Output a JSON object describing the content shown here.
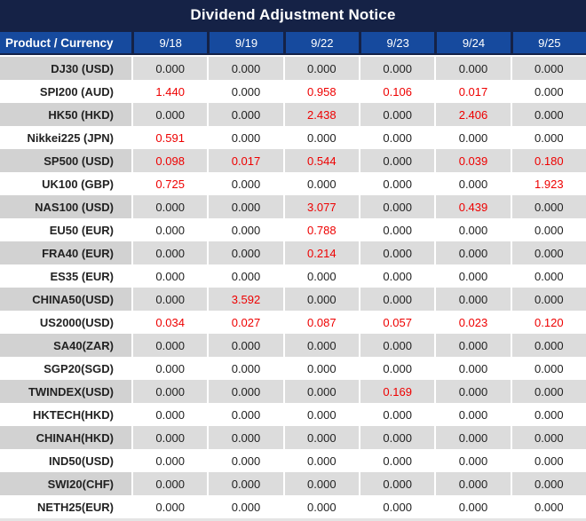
{
  "title": "Dividend Adjustment Notice",
  "table": {
    "product_header": "Product / Currency",
    "date_headers": [
      "9/18",
      "9/19",
      "9/22",
      "9/23",
      "9/24",
      "9/25"
    ],
    "rows": [
      {
        "product": "DJ30 (USD)",
        "values": [
          "0.000",
          "0.000",
          "0.000",
          "0.000",
          "0.000",
          "0.000"
        ]
      },
      {
        "product": "SPI200 (AUD)",
        "values": [
          "1.440",
          "0.000",
          "0.958",
          "0.106",
          "0.017",
          "0.000"
        ]
      },
      {
        "product": "HK50 (HKD)",
        "values": [
          "0.000",
          "0.000",
          "2.438",
          "0.000",
          "2.406",
          "0.000"
        ]
      },
      {
        "product": "Nikkei225 (JPN)",
        "values": [
          "0.591",
          "0.000",
          "0.000",
          "0.000",
          "0.000",
          "0.000"
        ]
      },
      {
        "product": "SP500 (USD)",
        "values": [
          "0.098",
          "0.017",
          "0.544",
          "0.000",
          "0.039",
          "0.180"
        ]
      },
      {
        "product": "UK100 (GBP)",
        "values": [
          "0.725",
          "0.000",
          "0.000",
          "0.000",
          "0.000",
          "1.923"
        ]
      },
      {
        "product": "NAS100 (USD)",
        "values": [
          "0.000",
          "0.000",
          "3.077",
          "0.000",
          "0.439",
          "0.000"
        ]
      },
      {
        "product": "EU50 (EUR)",
        "values": [
          "0.000",
          "0.000",
          "0.788",
          "0.000",
          "0.000",
          "0.000"
        ]
      },
      {
        "product": "FRA40 (EUR)",
        "values": [
          "0.000",
          "0.000",
          "0.214",
          "0.000",
          "0.000",
          "0.000"
        ]
      },
      {
        "product": "ES35 (EUR)",
        "values": [
          "0.000",
          "0.000",
          "0.000",
          "0.000",
          "0.000",
          "0.000"
        ]
      },
      {
        "product": "CHINA50(USD)",
        "values": [
          "0.000",
          "3.592",
          "0.000",
          "0.000",
          "0.000",
          "0.000"
        ]
      },
      {
        "product": "US2000(USD)",
        "values": [
          "0.034",
          "0.027",
          "0.087",
          "0.057",
          "0.023",
          "0.120"
        ]
      },
      {
        "product": "SA40(ZAR)",
        "values": [
          "0.000",
          "0.000",
          "0.000",
          "0.000",
          "0.000",
          "0.000"
        ]
      },
      {
        "product": "SGP20(SGD)",
        "values": [
          "0.000",
          "0.000",
          "0.000",
          "0.000",
          "0.000",
          "0.000"
        ]
      },
      {
        "product": "TWINDEX(USD)",
        "values": [
          "0.000",
          "0.000",
          "0.000",
          "0.169",
          "0.000",
          "0.000"
        ]
      },
      {
        "product": "HKTECH(HKD)",
        "values": [
          "0.000",
          "0.000",
          "0.000",
          "0.000",
          "0.000",
          "0.000"
        ]
      },
      {
        "product": "CHINAH(HKD)",
        "values": [
          "0.000",
          "0.000",
          "0.000",
          "0.000",
          "0.000",
          "0.000"
        ]
      },
      {
        "product": "IND50(USD)",
        "values": [
          "0.000",
          "0.000",
          "0.000",
          "0.000",
          "0.000",
          "0.000"
        ]
      },
      {
        "product": "SWI20(CHF)",
        "values": [
          "0.000",
          "0.000",
          "0.000",
          "0.000",
          "0.000",
          "0.000"
        ]
      },
      {
        "product": "NETH25(EUR)",
        "values": [
          "0.000",
          "0.000",
          "0.000",
          "0.000",
          "0.000",
          "0.000"
        ]
      }
    ]
  },
  "colors": {
    "title_bg": "#152246",
    "header_bg": "#164a9e",
    "stripe_bg": "#dcdcdc",
    "stripe_product_bg": "#d2d2d2",
    "red_value": "#ee0000",
    "text_dark": "#222222"
  }
}
